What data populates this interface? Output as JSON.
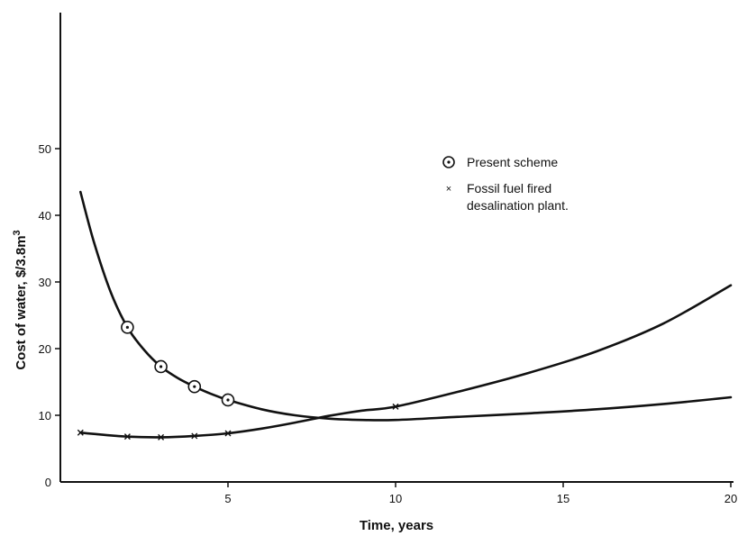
{
  "chart_data": {
    "type": "line",
    "title": "",
    "xlabel": "Time, years",
    "ylabel": "Cost of water, $/3.8m",
    "ylabel_superscript": "3",
    "xlim": [
      0,
      20
    ],
    "ylim": [
      0,
      70
    ],
    "x_ticks": [
      {
        "value": 5,
        "label": "5"
      },
      {
        "value": 10,
        "label": "10"
      },
      {
        "value": 15,
        "label": "15"
      },
      {
        "value": 20,
        "label": "20"
      }
    ],
    "y_ticks": [
      {
        "value": 0,
        "label": "0"
      },
      {
        "value": 10,
        "label": "10"
      },
      {
        "value": 20,
        "label": "20"
      },
      {
        "value": 30,
        "label": "30"
      },
      {
        "value": 40,
        "label": "40"
      },
      {
        "value": 50,
        "label": "50"
      }
    ],
    "grid": false,
    "legend_position": "top-right",
    "legend": [
      {
        "series": "present",
        "label_lines": [
          "Present scheme"
        ]
      },
      {
        "series": "fossil",
        "label_lines": [
          "Fossil fuel fired",
          "desalination plant."
        ]
      }
    ],
    "series": [
      {
        "key": "present",
        "marker": "circle-dot",
        "curve": [
          [
            0.6,
            43.5
          ],
          [
            1,
            36
          ],
          [
            1.5,
            28.5
          ],
          [
            2,
            23.2
          ],
          [
            2.5,
            19.8
          ],
          [
            3,
            17.3
          ],
          [
            3.5,
            15.6
          ],
          [
            4,
            14.3
          ],
          [
            4.5,
            13.2
          ],
          [
            5,
            12.3
          ],
          [
            6,
            10.9
          ],
          [
            7,
            10.0
          ],
          [
            8,
            9.5
          ],
          [
            9,
            9.3
          ],
          [
            10,
            9.3
          ],
          [
            12,
            9.8
          ],
          [
            14,
            10.3
          ],
          [
            16,
            10.9
          ],
          [
            18,
            11.7
          ],
          [
            20,
            12.7
          ]
        ],
        "markers": [
          [
            2,
            23.2
          ],
          [
            3,
            17.3
          ],
          [
            4,
            14.3
          ],
          [
            5,
            12.3
          ]
        ]
      },
      {
        "key": "fossil",
        "marker": "x",
        "curve": [
          [
            0.6,
            7.4
          ],
          [
            1,
            7.2
          ],
          [
            2,
            6.8
          ],
          [
            3,
            6.7
          ],
          [
            4,
            6.9
          ],
          [
            5,
            7.3
          ],
          [
            6,
            8.0
          ],
          [
            7,
            8.9
          ],
          [
            8,
            9.9
          ],
          [
            9,
            10.7
          ],
          [
            10,
            11.3
          ],
          [
            12,
            13.7
          ],
          [
            14,
            16.4
          ],
          [
            16,
            19.6
          ],
          [
            18,
            23.8
          ],
          [
            20,
            29.5
          ]
        ],
        "markers": [
          [
            0.6,
            7.4
          ],
          [
            2,
            6.8
          ],
          [
            3,
            6.7
          ],
          [
            4,
            6.9
          ],
          [
            5,
            7.3
          ],
          [
            10,
            11.3
          ]
        ]
      }
    ]
  }
}
